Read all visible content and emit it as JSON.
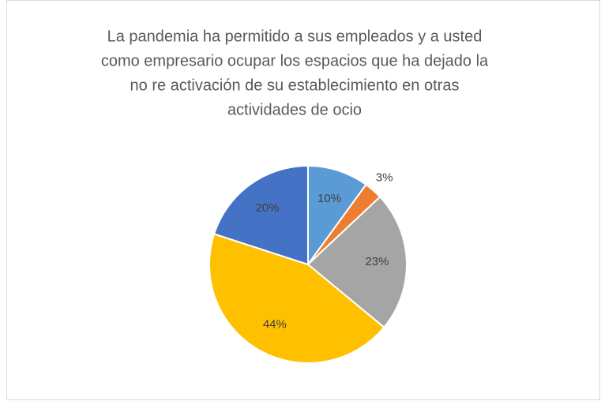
{
  "chart_data": {
    "type": "pie",
    "title": [
      "La pandemia ha permitido a sus empleados y a usted",
      "como empresario ocupar los espacios que ha dejado la",
      "no re activación de su establecimiento en otras",
      "actividades de ocio"
    ],
    "values": [
      10,
      3,
      23,
      44,
      20
    ],
    "value_labels": [
      "10%",
      "3%",
      "23%",
      "44%",
      "20%"
    ],
    "colors": [
      "#5b9bd5",
      "#ed7d31",
      "#a5a5a5",
      "#ffc000",
      "#4472c4"
    ]
  }
}
